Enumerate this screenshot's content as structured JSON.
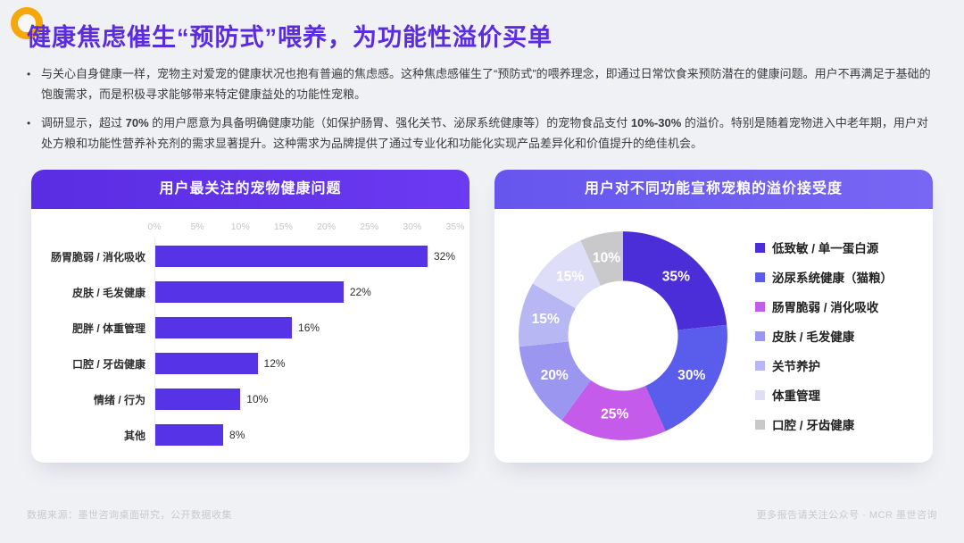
{
  "page": {
    "title": "健康焦虑催生“预防式”喂养，为功能性溢价买单",
    "title_color": "#5b2be0",
    "accent_ring_color": "#f5a70b",
    "background": "#f0f1f4"
  },
  "bullets": [
    {
      "segments": [
        {
          "t": "与关心自身健康一样，宠物主对爱宠的健康状况也抱有普遍的焦虑感。这种焦虑感催生了“预防式”的喂养理念，即通过日常饮食来预防潜在的健康问题。用户不再满足于基础的饱腹需求，而是积极寻求能够带来特定健康益处的功能性宠粮。",
          "b": false
        }
      ]
    },
    {
      "segments": [
        {
          "t": "调研显示，超过 ",
          "b": false
        },
        {
          "t": "70%",
          "b": true
        },
        {
          "t": " 的用户愿意为具备明确健康功能（如保护肠胃、强化关节、泌尿系统健康等）的宠物食品支付 ",
          "b": false
        },
        {
          "t": "10%-30%",
          "b": true
        },
        {
          "t": " 的溢价。特别是随着宠物进入中老年期，用户对处方粮和功能性营养补充剂的需求显著提升。这种需求为品牌提供了通过专业化和功能化实现产品差异化和价值提升的绝佳机会。",
          "b": false
        }
      ]
    }
  ],
  "left_panel": {
    "header": "用户最关注的宠物健康问题",
    "header_gradient": [
      "#5a2ce2",
      "#6b3af2"
    ]
  },
  "right_panel": {
    "header": "用户对不同功能宣称宠粮的溢价接受度",
    "header_gradient": [
      "#6656ee",
      "#7866f4"
    ]
  },
  "chart_data": [
    {
      "type": "bar",
      "orientation": "horizontal",
      "title": "用户最关注的宠物健康问题",
      "categories": [
        "肠胃脆弱 / 消化吸收",
        "皮肤 / 毛发健康",
        "肥胖 / 体重管理",
        "口腔 / 牙齿健康",
        "情绪 / 行为",
        "其他"
      ],
      "values": [
        32,
        22,
        16,
        12,
        10,
        8
      ],
      "value_labels": [
        "32%",
        "22%",
        "16%",
        "12%",
        "10%",
        "8%"
      ],
      "xlim": [
        0,
        35
      ],
      "x_ticks": [
        "0%",
        "5%",
        "10%",
        "15%",
        "20%",
        "25%",
        "30%",
        "35%"
      ],
      "bar_color": "#5633e6",
      "grid": false,
      "legend_position": "none"
    },
    {
      "type": "pie",
      "donut": true,
      "title": "用户对不同功能宣称宠粮的溢价接受度",
      "labels": [
        "低致敏 / 单一蛋白源",
        "泌尿系统健康（猫粮）",
        "肠胃脆弱 / 消化吸收",
        "皮肤 / 毛发健康",
        "关节养护",
        "体重管理",
        "口腔 / 牙齿健康"
      ],
      "values": [
        35,
        30,
        25,
        20,
        15,
        15,
        10
      ],
      "slice_labels": [
        "35%",
        "30%",
        "25%",
        "20%",
        "15%",
        "15%",
        "10%"
      ],
      "colors": [
        "#4b2ed8",
        "#5a5cec",
        "#c45bea",
        "#9b97f0",
        "#b7b8f3",
        "#dedef9",
        "#c9c9cc"
      ],
      "label_color": "#ffffff",
      "legend_position": "right",
      "start_angle_deg": 0
    }
  ],
  "footer": {
    "left": "数据来源：墨世咨询桌面研究，公开数据收集",
    "right": "更多报告请关注公众号 · MCR 墨世咨询"
  }
}
